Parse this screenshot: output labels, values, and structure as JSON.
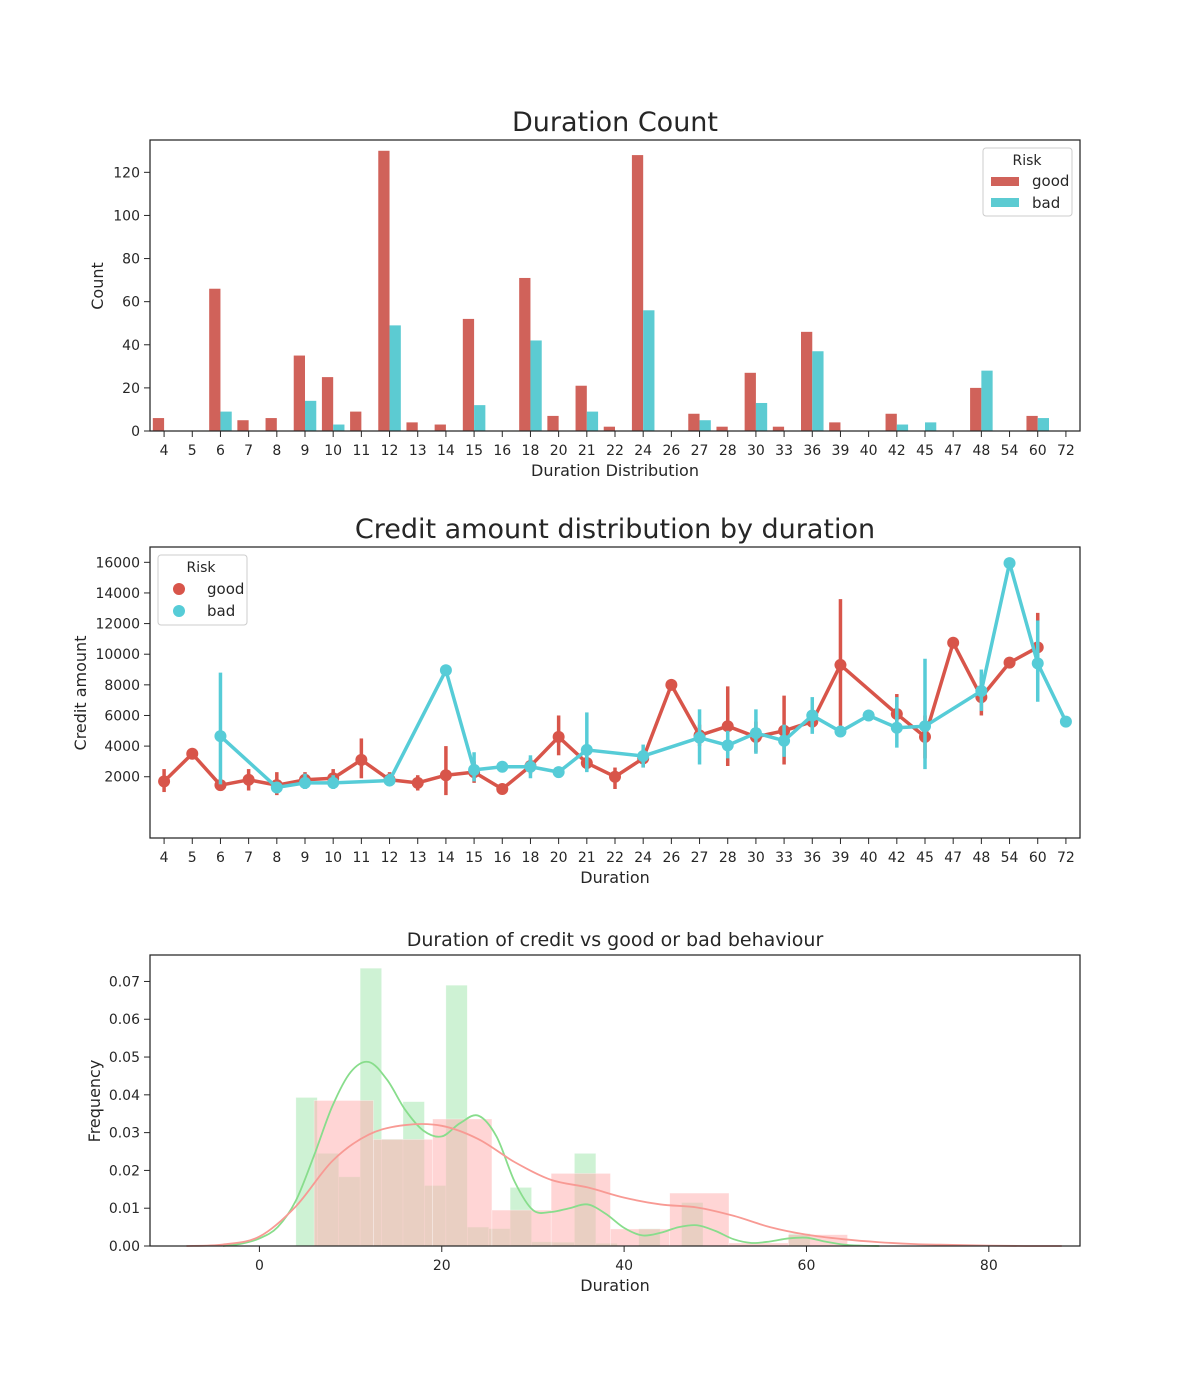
{
  "chart_data": [
    {
      "type": "bar",
      "title": "Duration Count",
      "xlabel": "Duration Distribution",
      "ylabel": "Count",
      "ylim": [
        0,
        135
      ],
      "yticks": [
        0,
        20,
        40,
        60,
        80,
        100,
        120
      ],
      "categories": [
        "4",
        "5",
        "6",
        "7",
        "8",
        "9",
        "10",
        "11",
        "12",
        "13",
        "14",
        "15",
        "16",
        "18",
        "20",
        "21",
        "22",
        "24",
        "26",
        "27",
        "28",
        "30",
        "33",
        "36",
        "39",
        "40",
        "42",
        "45",
        "47",
        "48",
        "54",
        "60",
        "72"
      ],
      "legend": {
        "title": "Risk",
        "position": "top-right"
      },
      "series": [
        {
          "name": "good",
          "color": "#d0625a",
          "values": [
            6,
            0,
            66,
            5,
            6,
            35,
            25,
            9,
            130,
            4,
            3,
            52,
            0,
            71,
            7,
            21,
            2,
            128,
            0,
            8,
            2,
            27,
            2,
            46,
            4,
            0,
            8,
            0,
            0,
            20,
            0,
            7,
            0
          ]
        },
        {
          "name": "bad",
          "color": "#5ccbd2",
          "values": [
            0,
            0,
            9,
            0,
            0,
            14,
            3,
            0,
            49,
            0,
            0,
            12,
            0,
            42,
            0,
            9,
            0,
            56,
            0,
            5,
            0,
            13,
            0,
            37,
            0,
            0,
            3,
            4,
            0,
            28,
            0,
            6,
            0
          ]
        }
      ]
    },
    {
      "type": "line",
      "title": "Credit amount distribution by duration",
      "xlabel": "Duration",
      "ylabel": "Credit amount",
      "ylim": [
        -2000,
        17000
      ],
      "yticks": [
        2000,
        4000,
        6000,
        8000,
        10000,
        12000,
        14000,
        16000
      ],
      "categories": [
        "4",
        "5",
        "6",
        "7",
        "8",
        "9",
        "10",
        "11",
        "12",
        "13",
        "14",
        "15",
        "16",
        "18",
        "20",
        "21",
        "22",
        "24",
        "26",
        "27",
        "28",
        "30",
        "33",
        "36",
        "39",
        "40",
        "42",
        "45",
        "47",
        "48",
        "54",
        "60",
        "72"
      ],
      "legend": {
        "title": "Risk",
        "position": "top-left"
      },
      "series": [
        {
          "name": "good",
          "color": "#d8554a",
          "values": [
            1700,
            3500,
            1450,
            1800,
            1450,
            1800,
            1900,
            3100,
            1800,
            1600,
            2100,
            2300,
            1200,
            2700,
            4600,
            2900,
            2000,
            3200,
            8000,
            4700,
            5300,
            4600,
            5000,
            5600,
            9300,
            null,
            6100,
            4600,
            10750,
            7200,
            9450,
            10450,
            null
          ],
          "ci_low": [
            1000,
            null,
            1100,
            1100,
            800,
            1200,
            1400,
            1900,
            1400,
            1100,
            800,
            1600,
            null,
            2200,
            3400,
            2400,
            1200,
            2600,
            null,
            4000,
            2700,
            3600,
            2800,
            4900,
            5000,
            null,
            4900,
            3200,
            null,
            6000,
            null,
            8300,
            null
          ],
          "ci_high": [
            2500,
            null,
            1800,
            2500,
            2300,
            2300,
            2500,
            4500,
            2300,
            2100,
            4000,
            3000,
            null,
            3200,
            6000,
            3500,
            2600,
            3800,
            null,
            5400,
            7900,
            5600,
            7300,
            6300,
            13600,
            null,
            7400,
            6000,
            null,
            8500,
            null,
            12700,
            null
          ]
        },
        {
          "name": "bad",
          "color": "#56ccd7",
          "values": [
            null,
            null,
            4650,
            null,
            1300,
            1600,
            1600,
            null,
            1750,
            null,
            8950,
            2450,
            2650,
            2650,
            2300,
            3750,
            null,
            3350,
            null,
            4550,
            4050,
            4850,
            4350,
            6000,
            4950,
            6000,
            5200,
            5300,
            null,
            7600,
            15950,
            9400,
            5600
          ],
          "ci_low": [
            null,
            null,
            1500,
            null,
            1000,
            1200,
            1200,
            null,
            1400,
            null,
            null,
            1700,
            null,
            1900,
            null,
            2300,
            null,
            2600,
            null,
            2800,
            3200,
            3500,
            3300,
            4800,
            null,
            null,
            3900,
            2500,
            null,
            6300,
            null,
            6900,
            null
          ],
          "ci_high": [
            null,
            null,
            8800,
            null,
            1600,
            2200,
            2100,
            null,
            2200,
            null,
            null,
            3600,
            null,
            3400,
            null,
            6200,
            null,
            4100,
            null,
            6400,
            5000,
            6400,
            5400,
            7200,
            null,
            null,
            7200,
            9700,
            null,
            9000,
            null,
            12200,
            null
          ]
        }
      ]
    },
    {
      "type": "histogram",
      "title": "Duration of credit vs good or bad behaviour",
      "xlabel": "Duration",
      "ylabel": "Frequency",
      "xlim": [
        -12,
        90
      ],
      "ylim": [
        0,
        0.077
      ],
      "xticks": [
        0,
        20,
        40,
        60,
        80
      ],
      "yticks": [
        0.0,
        0.01,
        0.02,
        0.03,
        0.04,
        0.05,
        0.06,
        0.07
      ],
      "ytick_labels": [
        "0.00",
        "0.01",
        "0.02",
        "0.03",
        "0.04",
        "0.05",
        "0.06",
        "0.07"
      ],
      "series": [
        {
          "name": "good",
          "color": "#f89a94",
          "fill_color": "#ffb3b3",
          "fill_opacity": 0.55,
          "bin_edges": [
            6,
            12.5,
            19,
            25.5,
            32,
            38.5,
            45,
            51.5,
            58,
            64.5
          ],
          "bin_heights": [
            0.0385,
            0.0282,
            0.0336,
            0.0095,
            0.0192,
            0.0045,
            0.014,
            0.0008,
            0.003
          ],
          "kde_x": [
            -8,
            -4,
            0,
            4,
            8,
            12,
            16,
            20,
            24,
            28,
            32,
            36,
            40,
            44,
            48,
            52,
            56,
            60,
            64,
            68,
            72,
            76,
            80,
            84,
            88
          ],
          "kde_y": [
            0.0,
            0.0004,
            0.0025,
            0.0105,
            0.0225,
            0.0295,
            0.032,
            0.0318,
            0.0283,
            0.0222,
            0.0175,
            0.0155,
            0.0128,
            0.011,
            0.0102,
            0.008,
            0.005,
            0.003,
            0.0018,
            0.001,
            0.0005,
            0.0003,
            0.0001,
            0.0,
            0.0
          ]
        },
        {
          "name": "bad",
          "color": "#88dd8c",
          "fill_color": "#a6e8b0",
          "fill_opacity": 0.55,
          "bin_edges": [
            4,
            6.35,
            8.7,
            11.05,
            13.4,
            15.75,
            18.1,
            20.45,
            22.8,
            25.15,
            27.5,
            29.85,
            32.2,
            34.55,
            36.9,
            39.25,
            41.6,
            43.95,
            46.3,
            48.65,
            51,
            53.35,
            55.7,
            58.05,
            60.4,
            62.75
          ],
          "bin_heights": [
            0.0393,
            0.0245,
            0.0183,
            0.0735,
            0.0283,
            0.0382,
            0.016,
            0.069,
            0.005,
            0.0046,
            0.0155,
            0.0011,
            0.001,
            0.0245,
            0.0007,
            0.0,
            0.0046,
            0.0,
            0.0115,
            0.0,
            0.0,
            0.0,
            0.0,
            0.0033,
            0.0
          ],
          "kde_x": [
            -4,
            -2,
            0,
            2,
            4,
            6,
            8,
            10,
            12,
            14,
            16,
            18,
            20,
            22,
            24,
            26,
            28,
            30,
            32,
            34,
            36,
            38,
            40,
            42,
            44,
            46,
            48,
            50,
            52,
            54,
            56,
            58,
            60,
            62,
            64,
            66,
            68
          ],
          "kde_y": [
            0.0,
            0.0006,
            0.002,
            0.005,
            0.012,
            0.024,
            0.037,
            0.046,
            0.0487,
            0.044,
            0.036,
            0.0305,
            0.029,
            0.0325,
            0.0345,
            0.029,
            0.017,
            0.0095,
            0.009,
            0.01,
            0.011,
            0.0085,
            0.0048,
            0.0028,
            0.0035,
            0.005,
            0.0055,
            0.004,
            0.0018,
            0.0008,
            0.0012,
            0.002,
            0.0022,
            0.0012,
            0.0004,
            0.0001,
            0.0
          ]
        }
      ]
    }
  ]
}
